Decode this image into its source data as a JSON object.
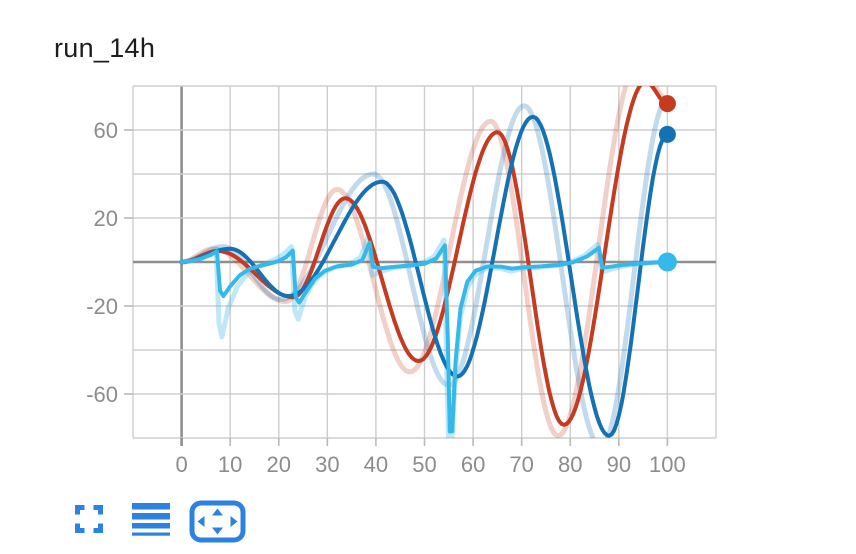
{
  "title": "run_14h",
  "colors": {
    "red": "#c43b22",
    "blue": "#1471b4",
    "cyan": "#35b9ea",
    "grid": "#cdcdcd",
    "axis": "#8f8f8f",
    "tick": "#b9b9b9",
    "tick_label": "#8c8c8c",
    "title_color": "#1d1d1d",
    "icon_blue": "#2b82e0",
    "background": "#ffffff"
  },
  "toolbar": {
    "buttons": [
      {
        "name": "fullscreen",
        "icon": "fullscreen-icon"
      },
      {
        "name": "data-table-toggle",
        "icon": "table-lines-icon"
      },
      {
        "name": "fit-to-domain",
        "icon": "fit-domain-icon"
      }
    ]
  },
  "chart_data": {
    "type": "line",
    "title": "run_14h",
    "xlabel": "",
    "ylabel": "",
    "xlim": [
      -10,
      110
    ],
    "ylim": [
      -80,
      80
    ],
    "grid": true,
    "legend": "none",
    "x_grid": {
      "min": -10,
      "max": 110,
      "step": 10
    },
    "y_grid": {
      "min": -80,
      "max": 80,
      "step": 20
    },
    "x_tick_values": [
      0,
      10,
      20,
      30,
      40,
      50,
      60,
      70,
      80,
      90,
      100
    ],
    "x_tick_labels": [
      "0",
      "10",
      "20",
      "30",
      "40",
      "50",
      "60",
      "70",
      "80",
      "90",
      "100"
    ],
    "y_tick_values": [
      60,
      20,
      -20,
      -60
    ],
    "y_tick_labels": [
      "60",
      "20",
      "-20",
      "-60"
    ],
    "series": [
      {
        "name": "red-raw",
        "color": "#c43b22",
        "opacity": 0.24,
        "width": 5,
        "interp": "cosine",
        "points": [
          [
            0,
            0
          ],
          [
            6.5,
            6
          ],
          [
            21.5,
            -18
          ],
          [
            32,
            33
          ],
          [
            47,
            -50
          ],
          [
            63.6,
            64
          ],
          [
            77.5,
            -79
          ],
          [
            94,
            90
          ],
          [
            100,
            74
          ]
        ]
      },
      {
        "name": "blue-raw",
        "color": "#1471b4",
        "opacity": 0.26,
        "width": 5,
        "interp": "cosine",
        "points": [
          [
            0,
            0
          ],
          [
            8.5,
            7
          ],
          [
            20.5,
            -17
          ],
          [
            39.5,
            40
          ],
          [
            55,
            -56
          ],
          [
            70.5,
            71
          ],
          [
            86.3,
            -84
          ],
          [
            100,
            74
          ]
        ]
      },
      {
        "name": "cyan-raw",
        "color": "#35b9ea",
        "opacity": 0.32,
        "width": 5,
        "interp": "linear",
        "points": [
          [
            0,
            0
          ],
          [
            3,
            1
          ],
          [
            5.5,
            3.5
          ],
          [
            7.1,
            5.8
          ],
          [
            7.7,
            -28
          ],
          [
            8.3,
            -34
          ],
          [
            9.6,
            -21
          ],
          [
            11.5,
            -11
          ],
          [
            13.5,
            -5.5
          ],
          [
            15.5,
            -2.5
          ],
          [
            17.5,
            -0.5
          ],
          [
            19.5,
            1.5
          ],
          [
            21.3,
            4
          ],
          [
            22.6,
            7
          ],
          [
            23.3,
            -22
          ],
          [
            24,
            -26
          ],
          [
            25.5,
            -15.5
          ],
          [
            27.2,
            -9
          ],
          [
            29.2,
            -4.8
          ],
          [
            31.5,
            -2.4
          ],
          [
            34.5,
            -1
          ],
          [
            36.8,
            2
          ],
          [
            38.5,
            11.5
          ],
          [
            39.3,
            -6
          ],
          [
            40.8,
            -4.4
          ],
          [
            43.5,
            -2.6
          ],
          [
            46.5,
            -1.8
          ],
          [
            49.5,
            -0.6
          ],
          [
            52,
            2.4
          ],
          [
            54,
            10
          ],
          [
            54.6,
            -50
          ],
          [
            55,
            -84
          ],
          [
            55.6,
            -84
          ],
          [
            56.3,
            -52
          ],
          [
            57.3,
            -26
          ],
          [
            58.7,
            -12
          ],
          [
            60.5,
            -5.5
          ],
          [
            63,
            -2.6
          ],
          [
            65.5,
            -2.8
          ],
          [
            67.8,
            -4.2
          ],
          [
            70.3,
            -3
          ],
          [
            73.5,
            -2.4
          ],
          [
            77,
            -1.6
          ],
          [
            80,
            -0.2
          ],
          [
            83,
            3
          ],
          [
            85.6,
            8
          ],
          [
            86.5,
            -4.6
          ],
          [
            88.2,
            -3.4
          ],
          [
            90.5,
            -2
          ],
          [
            93.5,
            -1
          ],
          [
            96.5,
            -0.4
          ],
          [
            100,
            0.4
          ]
        ]
      },
      {
        "name": "red-smoothed",
        "color": "#c43b22",
        "opacity": 1,
        "width": 4,
        "interp": "cosine",
        "end_dot": [
          100,
          72
        ],
        "dot_r": 8.5,
        "points": [
          [
            0,
            0
          ],
          [
            7.5,
            5
          ],
          [
            23,
            -16
          ],
          [
            33.7,
            29
          ],
          [
            48.8,
            -45
          ],
          [
            65,
            59
          ],
          [
            78.7,
            -74
          ],
          [
            95.5,
            82
          ],
          [
            100,
            72
          ]
        ]
      },
      {
        "name": "blue-smoothed",
        "color": "#1471b4",
        "opacity": 1,
        "width": 4,
        "interp": "cosine",
        "end_dot": [
          100,
          58
        ],
        "dot_r": 8.5,
        "points": [
          [
            0,
            0
          ],
          [
            10,
            6
          ],
          [
            22,
            -15.5
          ],
          [
            41.3,
            36.5
          ],
          [
            56.8,
            -52
          ],
          [
            72.3,
            66
          ],
          [
            88,
            -79
          ],
          [
            100,
            58
          ]
        ]
      },
      {
        "name": "cyan-smoothed",
        "color": "#35b9ea",
        "opacity": 1,
        "width": 4,
        "interp": "linear",
        "end_dot": [
          100,
          0
        ],
        "dot_r": 9.5,
        "points": [
          [
            0,
            0
          ],
          [
            2,
            0.5
          ],
          [
            4,
            1.5
          ],
          [
            6,
            3.2
          ],
          [
            7.3,
            4.8
          ],
          [
            7.9,
            -13
          ],
          [
            8.6,
            -15.5
          ],
          [
            10,
            -11
          ],
          [
            12,
            -6
          ],
          [
            14,
            -3.2
          ],
          [
            16,
            -1.8
          ],
          [
            18,
            -0.8
          ],
          [
            20,
            0.5
          ],
          [
            21.5,
            2.2
          ],
          [
            22.9,
            5.2
          ],
          [
            23.5,
            -16
          ],
          [
            24.2,
            -18.5
          ],
          [
            25.8,
            -13
          ],
          [
            27.5,
            -7.5
          ],
          [
            29.5,
            -4
          ],
          [
            32,
            -2
          ],
          [
            35,
            -1.2
          ],
          [
            37.2,
            0.8
          ],
          [
            38.7,
            8.8
          ],
          [
            39.4,
            -2.2
          ],
          [
            41,
            -2.8
          ],
          [
            44,
            -2.2
          ],
          [
            47,
            -1.6
          ],
          [
            50,
            -0.8
          ],
          [
            52.4,
            1.6
          ],
          [
            54.2,
            7.6
          ],
          [
            54.8,
            -35
          ],
          [
            55.2,
            -77
          ],
          [
            55.7,
            -77
          ],
          [
            56.4,
            -45
          ],
          [
            57.4,
            -21
          ],
          [
            58.8,
            -9
          ],
          [
            60.5,
            -4
          ],
          [
            63,
            -2
          ],
          [
            66,
            -2.2
          ],
          [
            68,
            -3
          ],
          [
            70.5,
            -2.4
          ],
          [
            74,
            -2
          ],
          [
            77.5,
            -1.4
          ],
          [
            80.5,
            -0.2
          ],
          [
            83.5,
            2.6
          ],
          [
            85.9,
            6.4
          ],
          [
            86.6,
            -2.6
          ],
          [
            88.2,
            -2.2
          ],
          [
            90.5,
            -1.4
          ],
          [
            93.5,
            -0.8
          ],
          [
            96.5,
            -0.3
          ],
          [
            100,
            0
          ]
        ]
      }
    ]
  }
}
